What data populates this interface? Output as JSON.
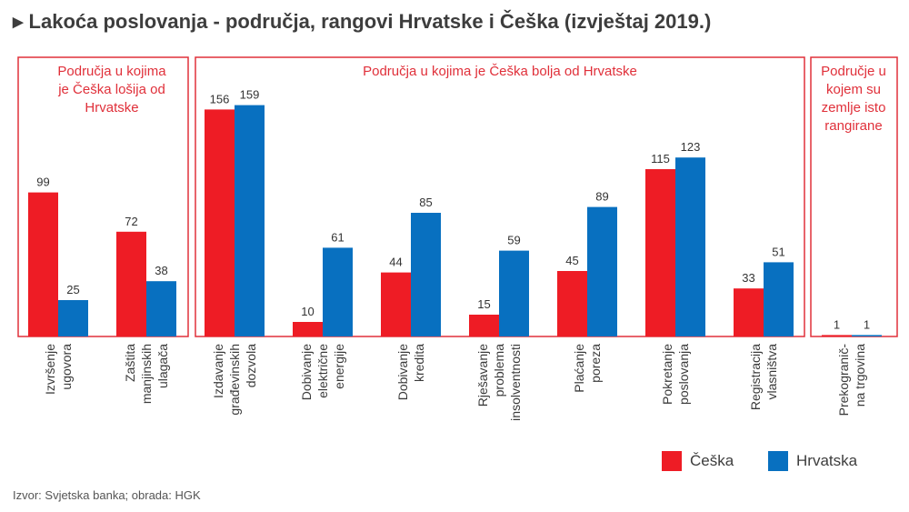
{
  "title": "Lakoća poslovanja - područja, rangovi Hrvatske i Češka (izvještaj 2019.)",
  "source": "Izvor: Svjetska banka; obrada: HGK",
  "colors": {
    "ceska": "#ee1c25",
    "hrvatska": "#0870c0",
    "frame": "#e0303a",
    "group_text": "#e0303a"
  },
  "legend": [
    {
      "name": "Češka",
      "color": "#ee1c25"
    },
    {
      "name": "Hrvatska",
      "color": "#0870c0"
    }
  ],
  "groups": [
    {
      "label": [
        "Područja u kojima",
        "je Češka lošija od",
        "Hrvatske"
      ]
    },
    {
      "label": [
        "Područja u kojima je Češka bolja od Hrvatske"
      ]
    },
    {
      "label": [
        "Područje u",
        "kojem su",
        "zemlje isto",
        "rangirane"
      ]
    }
  ],
  "chart_data": {
    "type": "bar",
    "title": "Lakoća poslovanja - područja, rangovi Hrvatske i Češka (izvještaj 2019.)",
    "categories": [
      [
        "Izvršenje",
        "ugovora"
      ],
      [
        "Zaštita",
        "manjinskih",
        "ulagača"
      ],
      [
        "Izdavanje",
        "građevinskih",
        "dozvola"
      ],
      [
        "Dobivanje",
        "električne",
        "energije"
      ],
      [
        "Dobivanje",
        "kredita"
      ],
      [
        "Rješavanje",
        "problema",
        "insolventnosti"
      ],
      [
        "Plaćanje",
        "poreza"
      ],
      [
        "Pokretanje",
        "poslovanja"
      ],
      [
        "Registracija",
        "vlasništva"
      ],
      [
        "Prekogranič-",
        "na trgovina"
      ]
    ],
    "series": [
      {
        "name": "Češka",
        "values": [
          99,
          72,
          156,
          10,
          44,
          15,
          45,
          115,
          33,
          1
        ]
      },
      {
        "name": "Hrvatska",
        "values": [
          25,
          38,
          159,
          61,
          85,
          59,
          89,
          123,
          51,
          1
        ]
      }
    ],
    "ylim": [
      0,
      170
    ],
    "legend_position": "bottom-right",
    "grid": false
  }
}
